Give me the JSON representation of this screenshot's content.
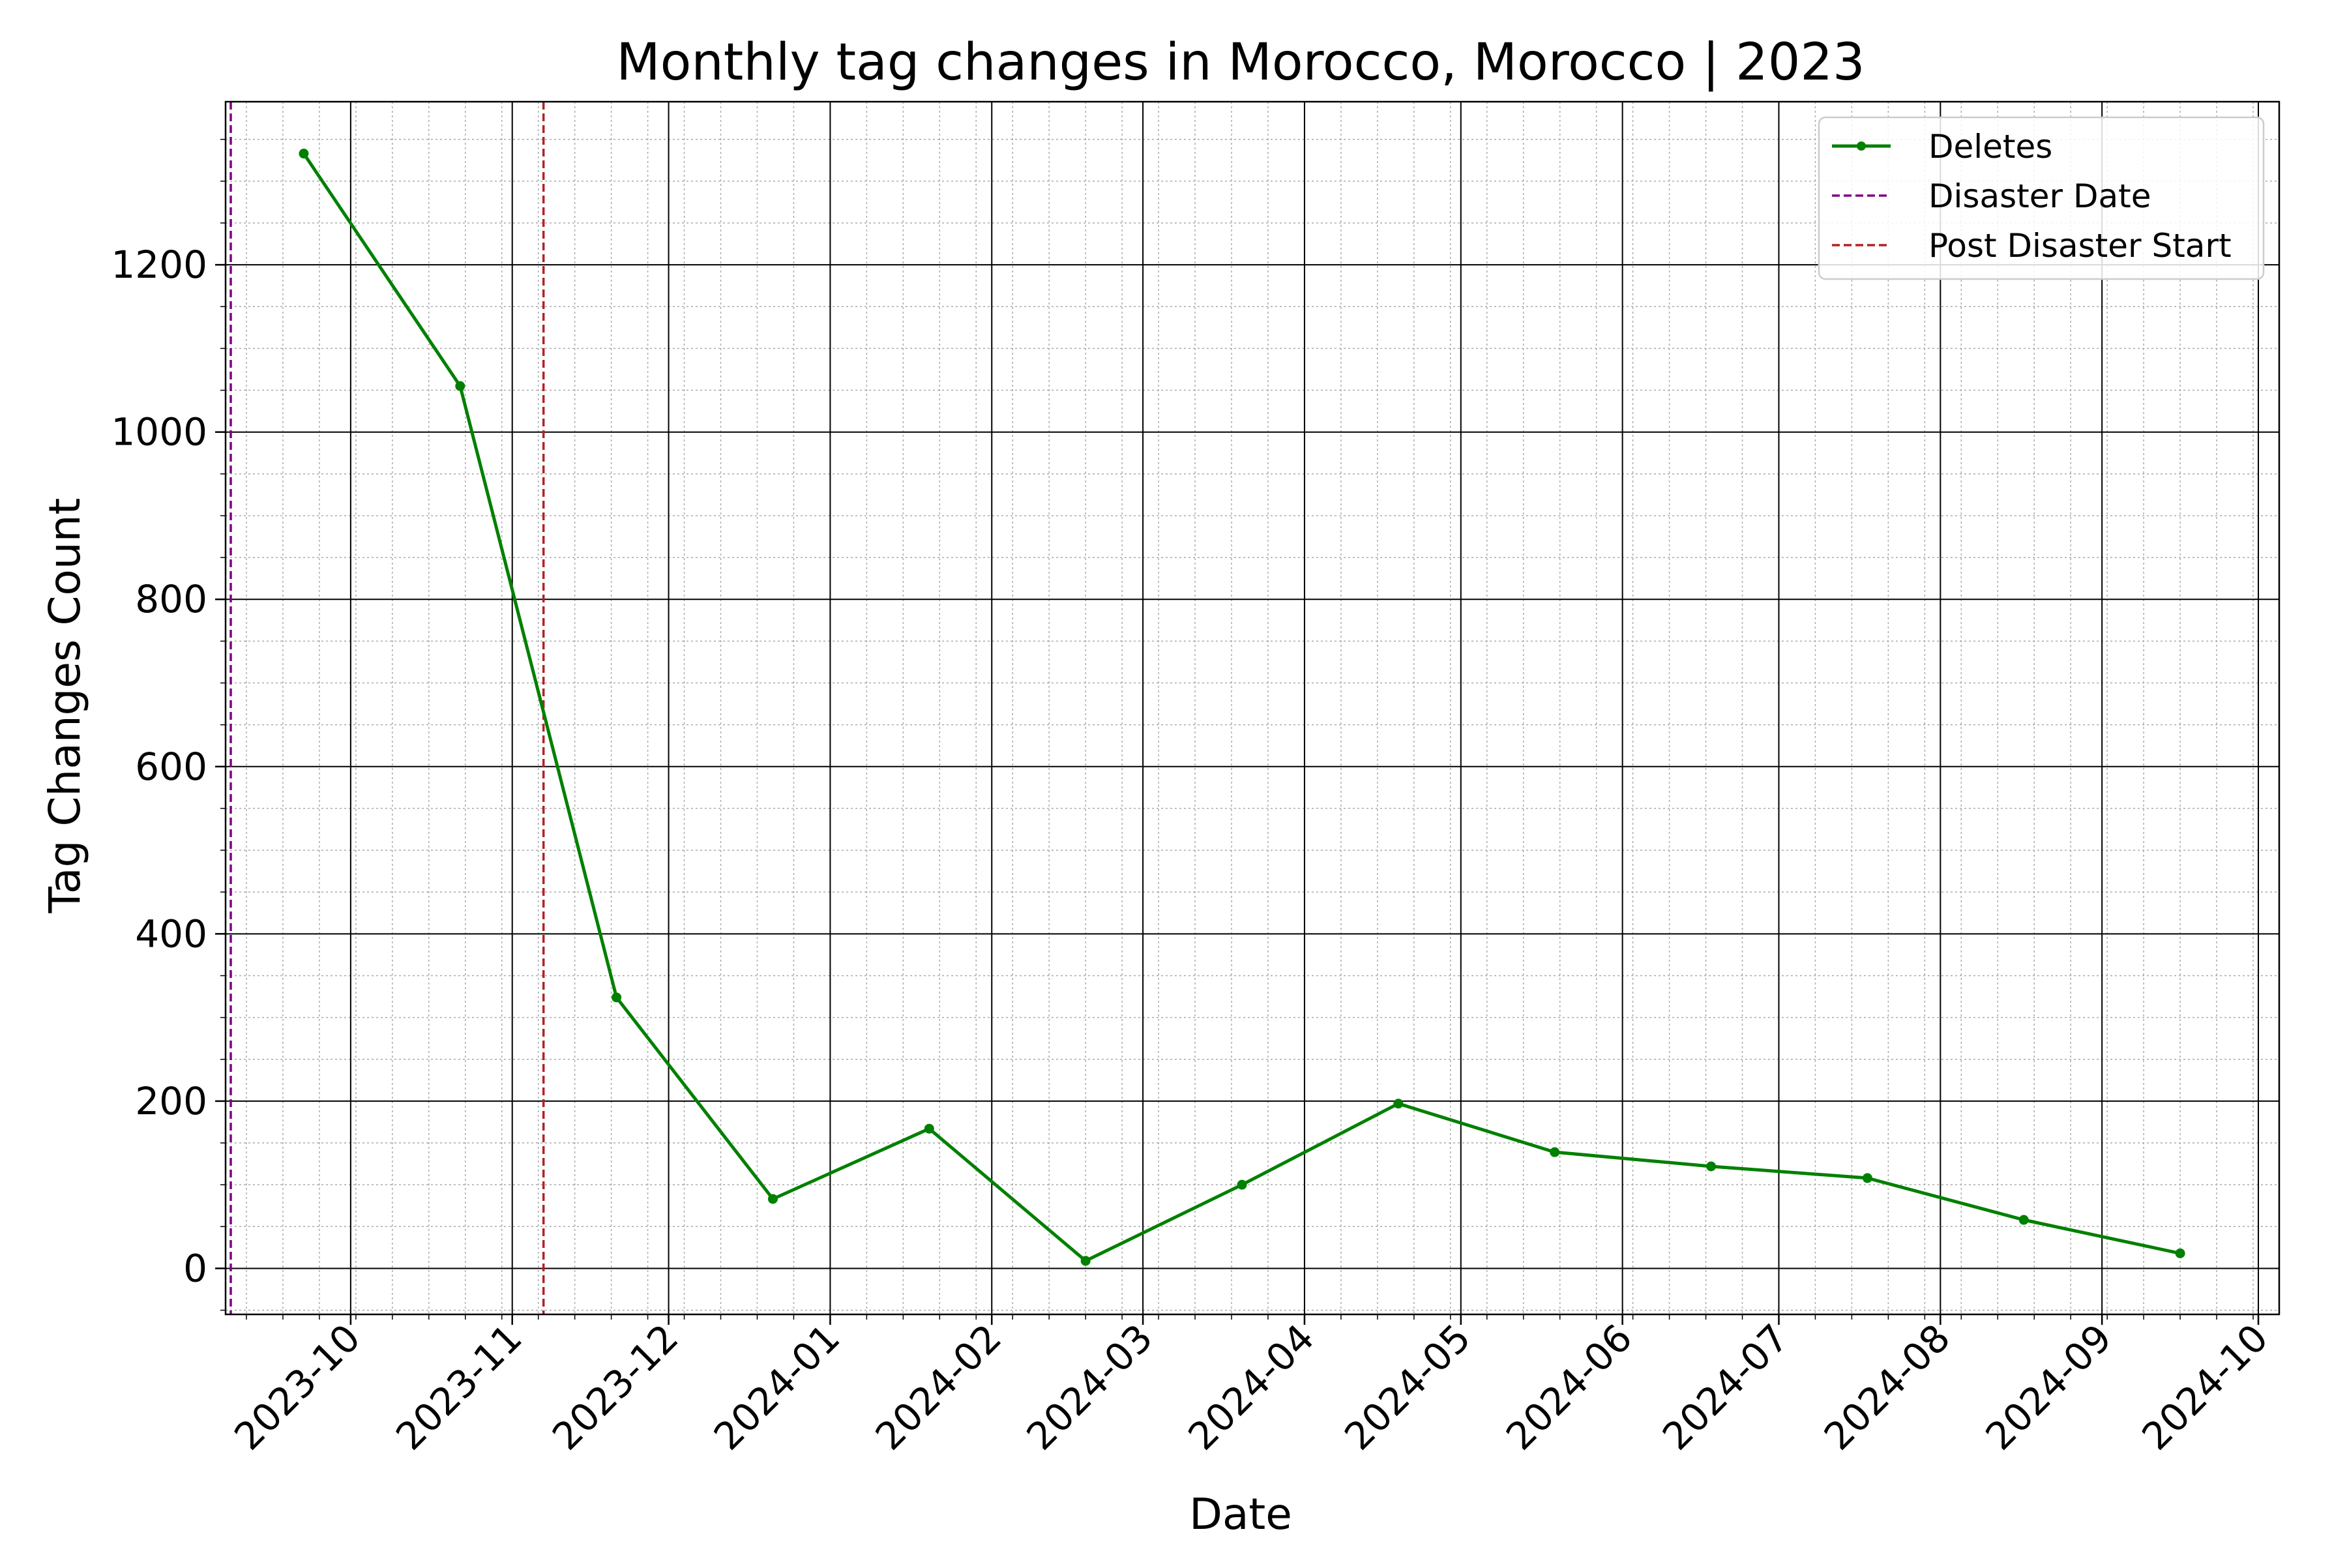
{
  "chart_data": {
    "type": "line",
    "title": "Monthly tag changes in Morocco, Morocco | 2023",
    "xlabel": "Date",
    "ylabel": "Tag Changes Count",
    "x_axis_type": "date",
    "xlim": [
      "2023-09-07",
      "2024-10-05"
    ],
    "ylim": [
      -55,
      1395
    ],
    "x_ticks": [
      "2023-10-01",
      "2023-11-01",
      "2023-12-01",
      "2024-01-01",
      "2024-02-01",
      "2024-03-01",
      "2024-04-01",
      "2024-05-01",
      "2024-06-01",
      "2024-07-01",
      "2024-08-01",
      "2024-09-01",
      "2024-10-01"
    ],
    "x_tick_labels": [
      "2023-10",
      "2023-11",
      "2023-12",
      "2024-01",
      "2024-02",
      "2024-03",
      "2024-04",
      "2024-05",
      "2024-06",
      "2024-07",
      "2024-08",
      "2024-09",
      "2024-10"
    ],
    "y_ticks": [
      0,
      200,
      400,
      600,
      800,
      1000,
      1200
    ],
    "y_tick_labels": [
      "0",
      "200",
      "400",
      "600",
      "800",
      "1000",
      "1200"
    ],
    "grid": true,
    "minor_grid": true,
    "legend_position": "top-right",
    "series": [
      {
        "name": "Deletes",
        "color": "#008000",
        "marker": "dot",
        "x": [
          "2023-09-22",
          "2023-10-22",
          "2023-11-21",
          "2023-12-21",
          "2024-01-20",
          "2024-02-19",
          "2024-03-20",
          "2024-04-19",
          "2024-05-19",
          "2024-06-18",
          "2024-07-18",
          "2024-08-17",
          "2024-09-16"
        ],
        "values": [
          1333,
          1055,
          324,
          83,
          167,
          9,
          100,
          197,
          139,
          122,
          108,
          58,
          18
        ]
      }
    ],
    "vlines": [
      {
        "name": "Disaster Date",
        "x": "2023-09-08",
        "color": "#800080",
        "style": "dashed"
      },
      {
        "name": "Post Disaster Start",
        "x": "2023-11-07",
        "color": "#b22222",
        "style": "dashed"
      }
    ]
  }
}
